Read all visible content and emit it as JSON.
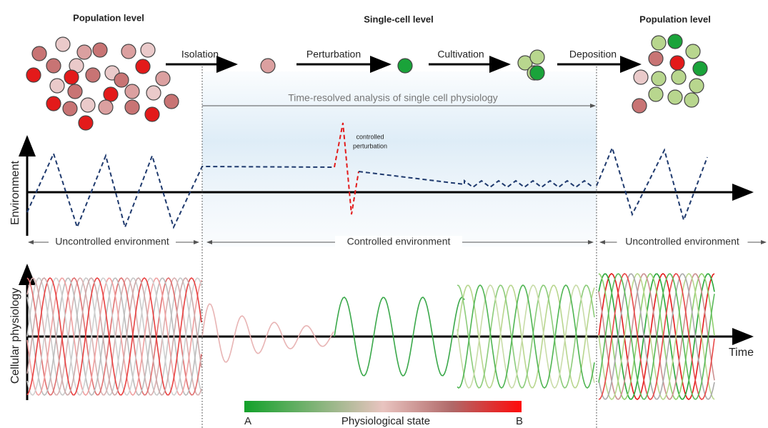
{
  "levels": {
    "left": "Population level",
    "center": "Single-cell level",
    "right": "Population level"
  },
  "steps": [
    "Isolation",
    "Perturbation",
    "Cultivation",
    "Deposition"
  ],
  "analysis": "Time-resolved analysis of single cell physiology",
  "perturbation_note": [
    "controlled",
    "perturbation"
  ],
  "environment_axis": "Environment",
  "environment_zones": [
    "Uncontrolled environment",
    "Controlled environment",
    "Uncontrolled environment"
  ],
  "physiology_axis": "Cellular physiology",
  "time_axis": "Time",
  "legend": {
    "start": "A",
    "title": "Physiological state",
    "end": "B"
  }
}
